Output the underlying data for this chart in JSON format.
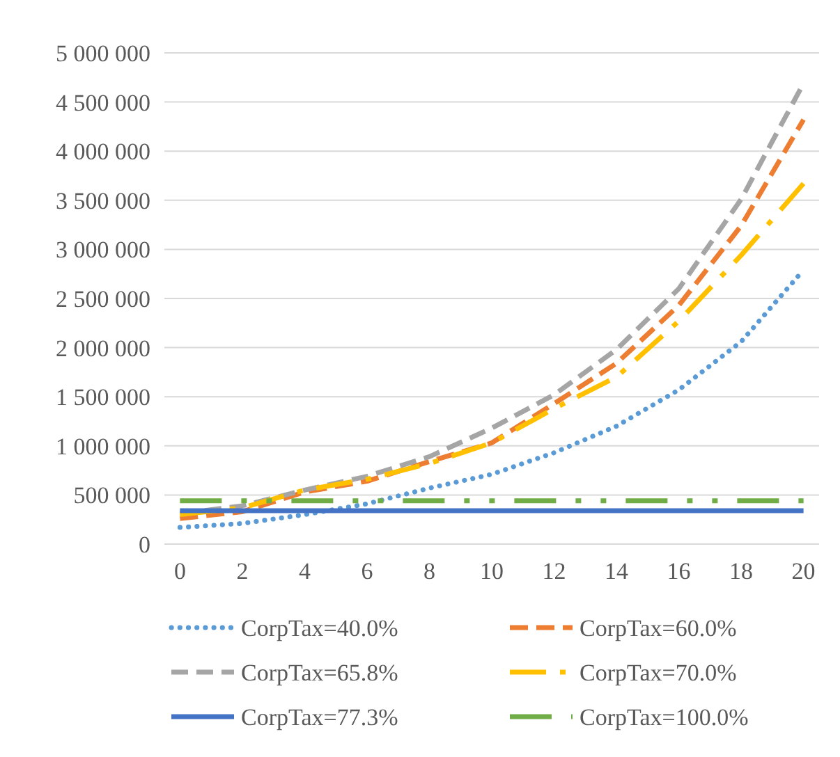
{
  "chart_data": {
    "type": "line",
    "x": [
      0,
      2,
      4,
      6,
      8,
      10,
      12,
      14,
      16,
      18,
      20
    ],
    "xlim": [
      -0.5,
      20.5
    ],
    "xticks": [
      0,
      2,
      4,
      6,
      8,
      10,
      12,
      14,
      16,
      18,
      20
    ],
    "ylim": [
      0,
      5000000
    ],
    "yticks": [
      {
        "value": 0,
        "label": "0"
      },
      {
        "value": 500000,
        "label": "500 000"
      },
      {
        "value": 1000000,
        "label": "1 000 000"
      },
      {
        "value": 1500000,
        "label": "1 500 000"
      },
      {
        "value": 2000000,
        "label": "2 000 000"
      },
      {
        "value": 2500000,
        "label": "2 500 000"
      },
      {
        "value": 3000000,
        "label": "3 000 000"
      },
      {
        "value": 3500000,
        "label": "3 500 000"
      },
      {
        "value": 4000000,
        "label": "4 000 000"
      },
      {
        "value": 4500000,
        "label": "4 500 000"
      },
      {
        "value": 5000000,
        "label": "5 000 000"
      }
    ],
    "grid": "y",
    "legend": "bottom",
    "marker": "none",
    "series": [
      {
        "name": "CorpTax=40.0%",
        "color": "#5b9bd5",
        "line_style": "dotted",
        "values": [
          170000,
          210000,
          300000,
          410000,
          570000,
          710000,
          930000,
          1200000,
          1570000,
          2060000,
          2790000
        ]
      },
      {
        "name": "CorpTax=60.0%",
        "color": "#ed7d31",
        "line_style": "dashed",
        "values": [
          260000,
          330000,
          530000,
          640000,
          840000,
          1030000,
          1430000,
          1840000,
          2430000,
          3240000,
          4320000
        ]
      },
      {
        "name": "CorpTax=65.8%",
        "color": "#a5a5a5",
        "line_style": "dashed",
        "values": [
          310000,
          390000,
          550000,
          690000,
          890000,
          1180000,
          1520000,
          1980000,
          2600000,
          3510000,
          4690000
        ]
      },
      {
        "name": "CorpTax=70.0%",
        "color": "#ffc000",
        "line_style": "dashed",
        "values": [
          300000,
          370000,
          550000,
          660000,
          820000,
          1030000,
          1380000,
          1700000,
          2270000,
          2940000,
          3670000
        ]
      },
      {
        "name": "CorpTax=77.3%",
        "color": "#4472c4",
        "line_style": "solid",
        "values": [
          340000,
          340000,
          340000,
          340000,
          340000,
          340000,
          340000,
          340000,
          340000,
          340000,
          340000
        ]
      },
      {
        "name": "CorpTax=100.0%",
        "color": "#70ad47",
        "line_style": "dashed",
        "values": [
          440000,
          440000,
          440000,
          440000,
          440000,
          440000,
          440000,
          440000,
          440000,
          440000,
          440000
        ]
      }
    ]
  }
}
